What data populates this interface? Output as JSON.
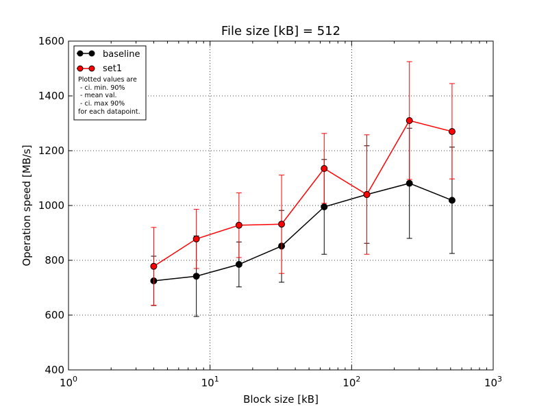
{
  "chart_data": {
    "type": "line",
    "title": "File size [kB] = 512",
    "xlabel": "Block size [kB]",
    "ylabel": "Operation speed [MB/s]",
    "x_scale": "log",
    "xlim": [
      1,
      1000
    ],
    "ylim": [
      400,
      1600
    ],
    "y_ticks": [
      400,
      600,
      800,
      1000,
      1200,
      1400,
      1600
    ],
    "x_ticks": [
      {
        "value": 1,
        "base": "10",
        "exp": "0"
      },
      {
        "value": 10,
        "base": "10",
        "exp": "1"
      },
      {
        "value": 100,
        "base": "10",
        "exp": "2"
      },
      {
        "value": 1000,
        "base": "10",
        "exp": "3"
      }
    ],
    "grid": true,
    "legend_position": "top-left",
    "x": [
      4,
      8,
      16,
      32,
      64,
      128,
      256,
      512
    ],
    "series": [
      {
        "name": "baseline",
        "color": "#000000",
        "values": [
          725,
          742,
          785,
          852,
          995,
          1040,
          1081,
          1019
        ],
        "err_low": [
          635,
          595,
          703,
          720,
          822,
          862,
          880,
          825
        ],
        "err_high": [
          815,
          889,
          867,
          982,
          1168,
          1218,
          1282,
          1213
        ]
      },
      {
        "name": "set1",
        "color": "#ff0000",
        "values": [
          778,
          878,
          928,
          932,
          1135,
          1040,
          1310,
          1270
        ],
        "err_low": [
          636,
          770,
          810,
          752,
          1008,
          822,
          1095,
          1097
        ],
        "err_high": [
          920,
          986,
          1046,
          1111,
          1263,
          1258,
          1525,
          1445
        ]
      }
    ],
    "legend_note": [
      "Plotted values are",
      " - ci. min. 90%",
      " - mean val.",
      " - ci. max 90%",
      "for each datapoint."
    ]
  }
}
